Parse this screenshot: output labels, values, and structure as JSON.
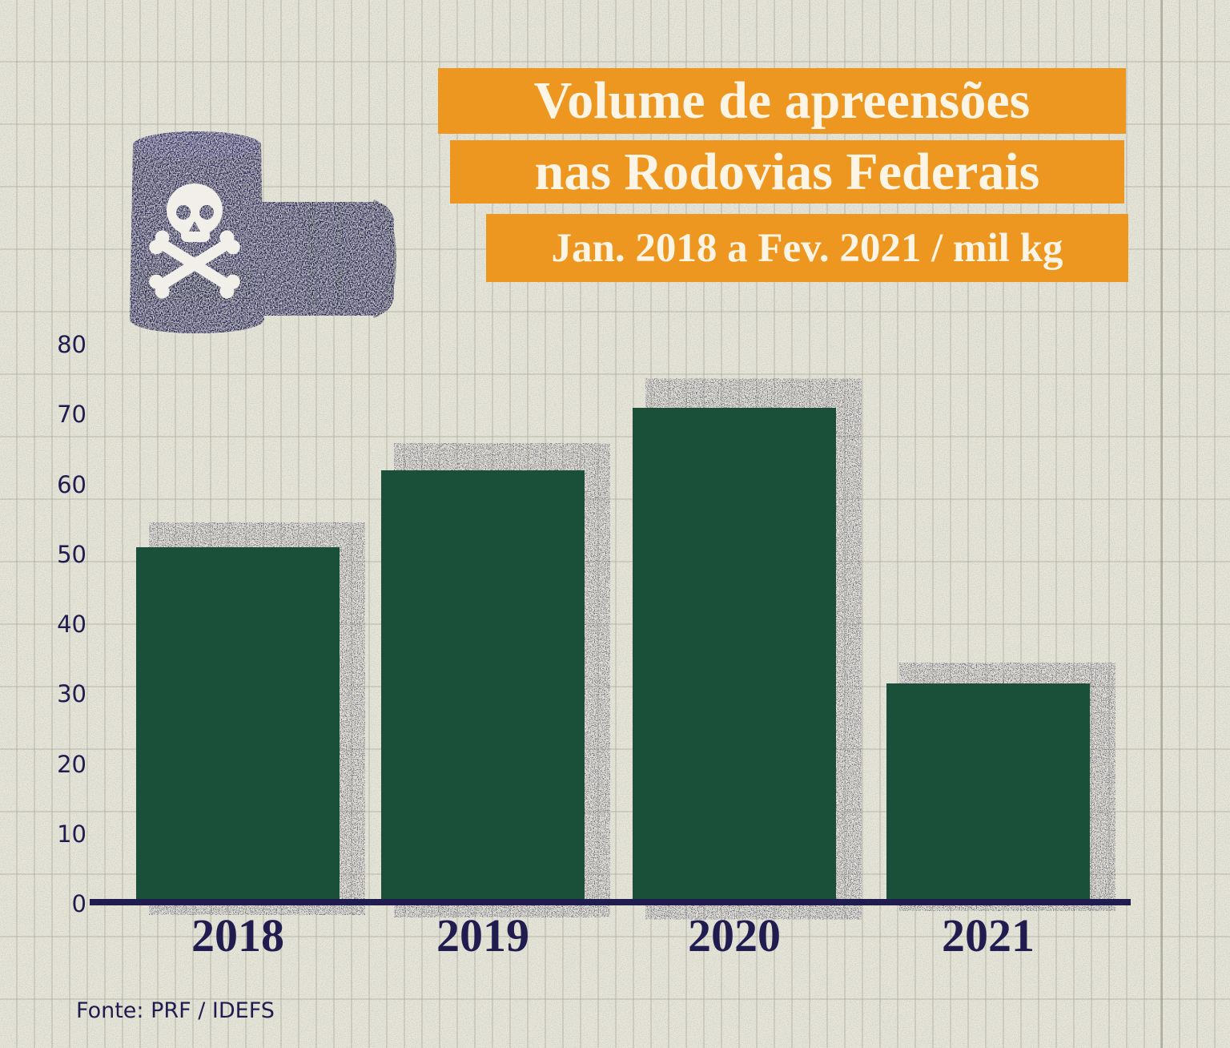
{
  "header": {
    "title_line1": "Volume de apreensões",
    "title_line2": "nas Rodovias Federais",
    "subtitle": "Jan. 2018 a Fev. 2021 / mil kg"
  },
  "footer": {
    "source": "Fonte: PRF / IDEFS"
  },
  "illustration": {
    "name": "poison-barrels",
    "description": "Two dark navy barrels, one upright bearing a white skull and crossbones, one lying on its side"
  },
  "colors": {
    "banner_orange": "#ee9720",
    "banner_text": "#fcf5e6",
    "bar_green": "#1a5039",
    "ink_navy": "#211c4f",
    "paper": "#e8e7da"
  },
  "chart_data": {
    "type": "bar",
    "title": "Volume de apreensões nas Rodovias Federais",
    "subtitle_unit": "Jan. 2018 a Fev. 2021 / mil kg",
    "categories": [
      "2018",
      "2019",
      "2020",
      "2021"
    ],
    "values": [
      51,
      62,
      71,
      31.5
    ],
    "ylim": [
      0,
      80
    ],
    "yticks": [
      0,
      10,
      20,
      30,
      40,
      50,
      60,
      70,
      80
    ],
    "xlabel": "",
    "ylabel": "",
    "legend": null,
    "grid": "ruled-paper background only, no chart gridlines",
    "source": "Fonte: PRF / IDEFS"
  }
}
